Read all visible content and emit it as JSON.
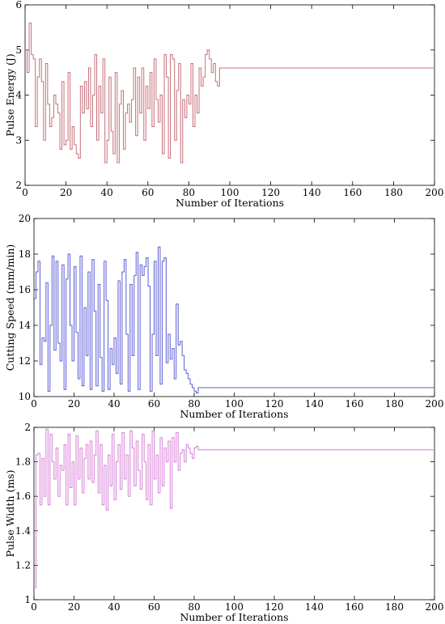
{
  "chart_data": [
    {
      "type": "line",
      "step": true,
      "xlabel": "Number of Iterations",
      "ylabel": "Pulse Energy (J)",
      "xlim": [
        0,
        200
      ],
      "ylim": [
        2,
        6
      ],
      "xticks": [
        0,
        20,
        40,
        60,
        80,
        100,
        120,
        140,
        160,
        180,
        200
      ],
      "yticks": [
        2,
        3,
        4,
        5,
        6
      ],
      "grid": false,
      "color": "#c7707a",
      "x": [
        0,
        1,
        2,
        3,
        4,
        5,
        6,
        7,
        8,
        9,
        10,
        11,
        12,
        13,
        14,
        15,
        16,
        17,
        18,
        19,
        20,
        21,
        22,
        23,
        24,
        25,
        26,
        27,
        28,
        29,
        30,
        31,
        32,
        33,
        34,
        35,
        36,
        37,
        38,
        39,
        40,
        41,
        42,
        43,
        44,
        45,
        46,
        47,
        48,
        49,
        50,
        51,
        52,
        53,
        54,
        55,
        56,
        57,
        58,
        59,
        60,
        61,
        62,
        63,
        64,
        65,
        66,
        67,
        68,
        69,
        70,
        71,
        72,
        73,
        74,
        75,
        76,
        77,
        78,
        79,
        80,
        81,
        82,
        83,
        84,
        85,
        86,
        87,
        88,
        89,
        90,
        91,
        92,
        93,
        94,
        95,
        96,
        97,
        98,
        99,
        200
      ],
      "y": [
        5.0,
        4.5,
        5.6,
        4.9,
        4.8,
        3.3,
        4.4,
        4.8,
        4.3,
        3.0,
        4.7,
        3.8,
        3.3,
        3.5,
        4.0,
        3.8,
        3.6,
        2.8,
        4.3,
        2.9,
        3.0,
        4.5,
        2.8,
        3.3,
        2.9,
        2.7,
        2.6,
        4.2,
        3.6,
        4.3,
        3.7,
        4.6,
        3.3,
        4.0,
        4.9,
        3.0,
        4.2,
        3.6,
        4.8,
        2.5,
        3.0,
        4.4,
        3.2,
        2.7,
        4.5,
        2.5,
        3.8,
        4.1,
        2.8,
        3.6,
        3.8,
        3.4,
        3.9,
        4.6,
        3.1,
        4.4,
        3.6,
        4.6,
        3.0,
        4.2,
        3.7,
        4.5,
        3.3,
        4.8,
        3.9,
        3.4,
        4.0,
        2.7,
        4.9,
        4.4,
        2.6,
        4.9,
        4.8,
        3.0,
        4.1,
        4.7,
        2.5,
        3.9,
        3.5,
        4.0,
        3.8,
        4.7,
        3.3,
        4.0,
        3.6,
        4.6,
        4.2,
        4.4,
        4.9,
        5.0,
        4.8,
        4.5,
        4.7,
        4.3,
        4.2,
        4.6,
        4.6,
        4.6,
        4.6,
        4.6,
        4.6
      ]
    },
    {
      "type": "line",
      "step": true,
      "xlabel": "Number of Iterations",
      "ylabel": "Cutting Speed (mm/min)",
      "xlim": [
        0,
        200
      ],
      "ylim": [
        10,
        20
      ],
      "xticks": [
        0,
        20,
        40,
        60,
        80,
        100,
        120,
        140,
        160,
        180,
        200
      ],
      "yticks": [
        10,
        12,
        14,
        16,
        18,
        20
      ],
      "grid": false,
      "color": "#5b5bd6",
      "x": [
        0,
        1,
        2,
        3,
        4,
        5,
        6,
        7,
        8,
        9,
        10,
        11,
        12,
        13,
        14,
        15,
        16,
        17,
        18,
        19,
        20,
        21,
        22,
        23,
        24,
        25,
        26,
        27,
        28,
        29,
        30,
        31,
        32,
        33,
        34,
        35,
        36,
        37,
        38,
        39,
        40,
        41,
        42,
        43,
        44,
        45,
        46,
        47,
        48,
        49,
        50,
        51,
        52,
        53,
        54,
        55,
        56,
        57,
        58,
        59,
        60,
        61,
        62,
        63,
        64,
        65,
        66,
        67,
        68,
        69,
        70,
        71,
        72,
        73,
        74,
        75,
        76,
        77,
        78,
        79,
        80,
        81,
        82,
        83,
        84,
        85,
        86,
        87,
        88,
        89,
        90,
        91,
        92,
        93,
        94,
        95,
        96,
        97,
        98,
        99,
        200
      ],
      "y": [
        15.5,
        17.0,
        17.6,
        11.8,
        13.3,
        13.1,
        16.4,
        10.3,
        14.0,
        17.9,
        12.6,
        17.6,
        13.0,
        12.0,
        17.4,
        10.4,
        16.6,
        18.0,
        14.0,
        12.0,
        17.3,
        13.6,
        11.0,
        17.9,
        10.6,
        15.0,
        12.3,
        17.0,
        10.4,
        17.7,
        14.8,
        10.6,
        16.3,
        12.2,
        10.3,
        17.6,
        15.4,
        10.4,
        12.7,
        11.8,
        13.3,
        11.3,
        16.5,
        10.7,
        17.0,
        17.7,
        13.5,
        10.3,
        16.3,
        12.3,
        16.8,
        18.1,
        10.4,
        17.4,
        16.8,
        17.3,
        17.8,
        16.2,
        10.3,
        13.5,
        17.6,
        12.3,
        18.4,
        10.7,
        17.6,
        17.8,
        11.9,
        13.5,
        12.1,
        12.7,
        11.0,
        15.2,
        12.9,
        13.1,
        12.3,
        11.5,
        11.3,
        11.0,
        10.7,
        10.5,
        10.3,
        10.2,
        10.5,
        10.5,
        10.5,
        10.5,
        10.5,
        10.5,
        10.5,
        10.5,
        10.5,
        10.5,
        10.5,
        10.5,
        10.5,
        10.5,
        10.5,
        10.5,
        10.5,
        10.5,
        10.5
      ]
    },
    {
      "type": "line",
      "step": true,
      "xlabel": "Number of Iterations",
      "ylabel": "Pulse Width (ms)",
      "xlim": [
        0,
        200
      ],
      "ylim": [
        1,
        2
      ],
      "xticks": [
        0,
        20,
        40,
        60,
        80,
        100,
        120,
        140,
        160,
        180,
        200
      ],
      "yticks": [
        1,
        1.2,
        1.4,
        1.6,
        1.8,
        2
      ],
      "grid": false,
      "color": "#d77fd7",
      "x": [
        0,
        1,
        2,
        3,
        4,
        5,
        6,
        7,
        8,
        9,
        10,
        11,
        12,
        13,
        14,
        15,
        16,
        17,
        18,
        19,
        20,
        21,
        22,
        23,
        24,
        25,
        26,
        27,
        28,
        29,
        30,
        31,
        32,
        33,
        34,
        35,
        36,
        37,
        38,
        39,
        40,
        41,
        42,
        43,
        44,
        45,
        46,
        47,
        48,
        49,
        50,
        51,
        52,
        53,
        54,
        55,
        56,
        57,
        58,
        59,
        60,
        61,
        62,
        63,
        64,
        65,
        66,
        67,
        68,
        69,
        70,
        71,
        72,
        73,
        74,
        75,
        76,
        77,
        78,
        79,
        80,
        81,
        82,
        83,
        84,
        85,
        86,
        87,
        88,
        89,
        90,
        91,
        92,
        93,
        94,
        95,
        96,
        97,
        98,
        99,
        200
      ],
      "y": [
        1.07,
        1.84,
        1.85,
        1.55,
        1.82,
        1.6,
        1.99,
        1.55,
        1.96,
        1.8,
        1.7,
        1.88,
        1.6,
        1.78,
        1.75,
        1.9,
        1.55,
        1.96,
        1.65,
        1.8,
        1.55,
        1.95,
        1.7,
        1.88,
        1.62,
        1.82,
        1.9,
        1.7,
        1.92,
        1.68,
        1.84,
        1.98,
        1.62,
        1.9,
        1.55,
        1.78,
        1.52,
        1.84,
        1.66,
        1.96,
        1.58,
        1.8,
        1.9,
        1.64,
        1.97,
        1.7,
        1.84,
        1.6,
        1.98,
        1.88,
        1.66,
        1.92,
        1.75,
        1.64,
        1.96,
        1.8,
        1.58,
        1.9,
        1.55,
        1.98,
        1.7,
        1.84,
        1.62,
        1.94,
        1.66,
        1.88,
        1.8,
        1.92,
        1.53,
        1.94,
        1.8,
        1.97,
        1.75,
        1.85,
        1.87,
        1.8,
        1.9,
        1.88,
        1.85,
        1.82,
        1.88,
        1.89,
        1.87,
        1.87,
        1.87,
        1.87,
        1.87,
        1.87,
        1.87,
        1.87,
        1.87,
        1.87,
        1.87,
        1.87,
        1.87,
        1.87,
        1.87,
        1.87,
        1.87,
        1.87,
        1.87
      ]
    }
  ]
}
